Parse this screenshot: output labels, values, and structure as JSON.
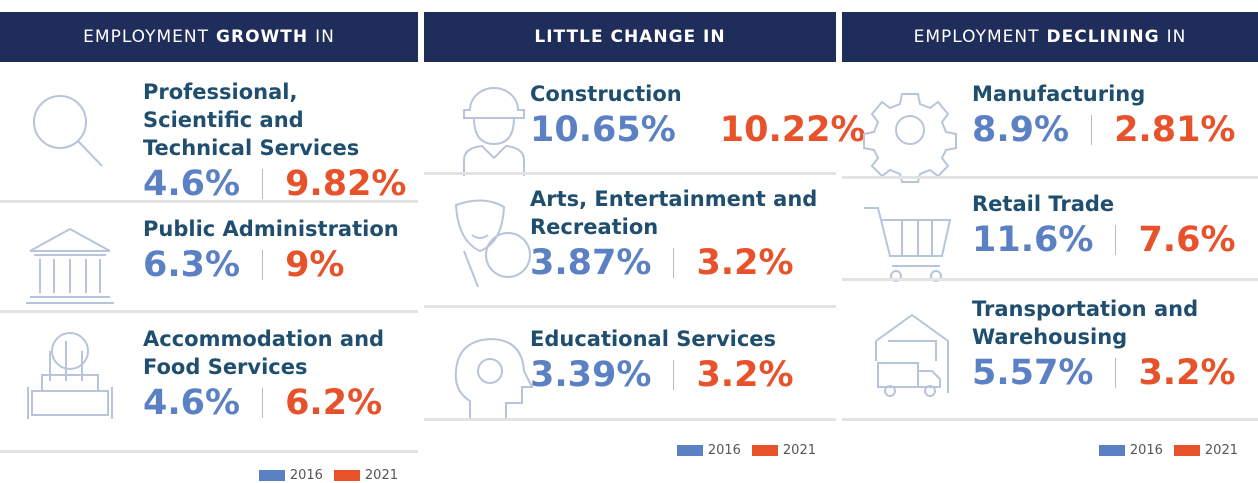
{
  "columns": [
    {
      "heading": [
        {
          "text": "EMPLOYMENT",
          "bold": false
        },
        {
          "text": "GROWTH",
          "bold": true
        },
        {
          "text": "IN",
          "bold": false
        }
      ],
      "items": [
        {
          "name": "Professional, Scientific and Technical Services",
          "v2016": "4.6%",
          "v2021": "9.82%"
        },
        {
          "name": "Public Administration",
          "v2016": "6.3%",
          "v2021": "9%"
        },
        {
          "name": "Accommodation and Food Services",
          "v2016": "4.6%",
          "v2021": "6.2%"
        }
      ]
    },
    {
      "heading": [
        {
          "text": "LITTLE CHANGE IN",
          "bold": true
        }
      ],
      "items": [
        {
          "name": "Construction",
          "v2016": "10.65%",
          "v2021": "10.22%"
        },
        {
          "name": "Arts, Entertainment and Recreation",
          "v2016": "3.87%",
          "v2021": "3.2%"
        },
        {
          "name": "Educational Services",
          "v2016": "3.39%",
          "v2021": "3.2%"
        }
      ]
    },
    {
      "heading": [
        {
          "text": "EMPLOYMENT",
          "bold": false
        },
        {
          "text": "DECLINING",
          "bold": true
        },
        {
          "text": "IN",
          "bold": false
        }
      ],
      "items": [
        {
          "name": "Manufacturing",
          "v2016": "8.9%",
          "v2021": "2.81%"
        },
        {
          "name": "Retail Trade",
          "v2016": "11.6%",
          "v2021": "7.6%"
        },
        {
          "name": "Transportation and Warehousing",
          "v2016": "5.57%",
          "v2021": "3.2%"
        }
      ]
    }
  ],
  "legend": [
    "2016",
    "2021"
  ]
}
